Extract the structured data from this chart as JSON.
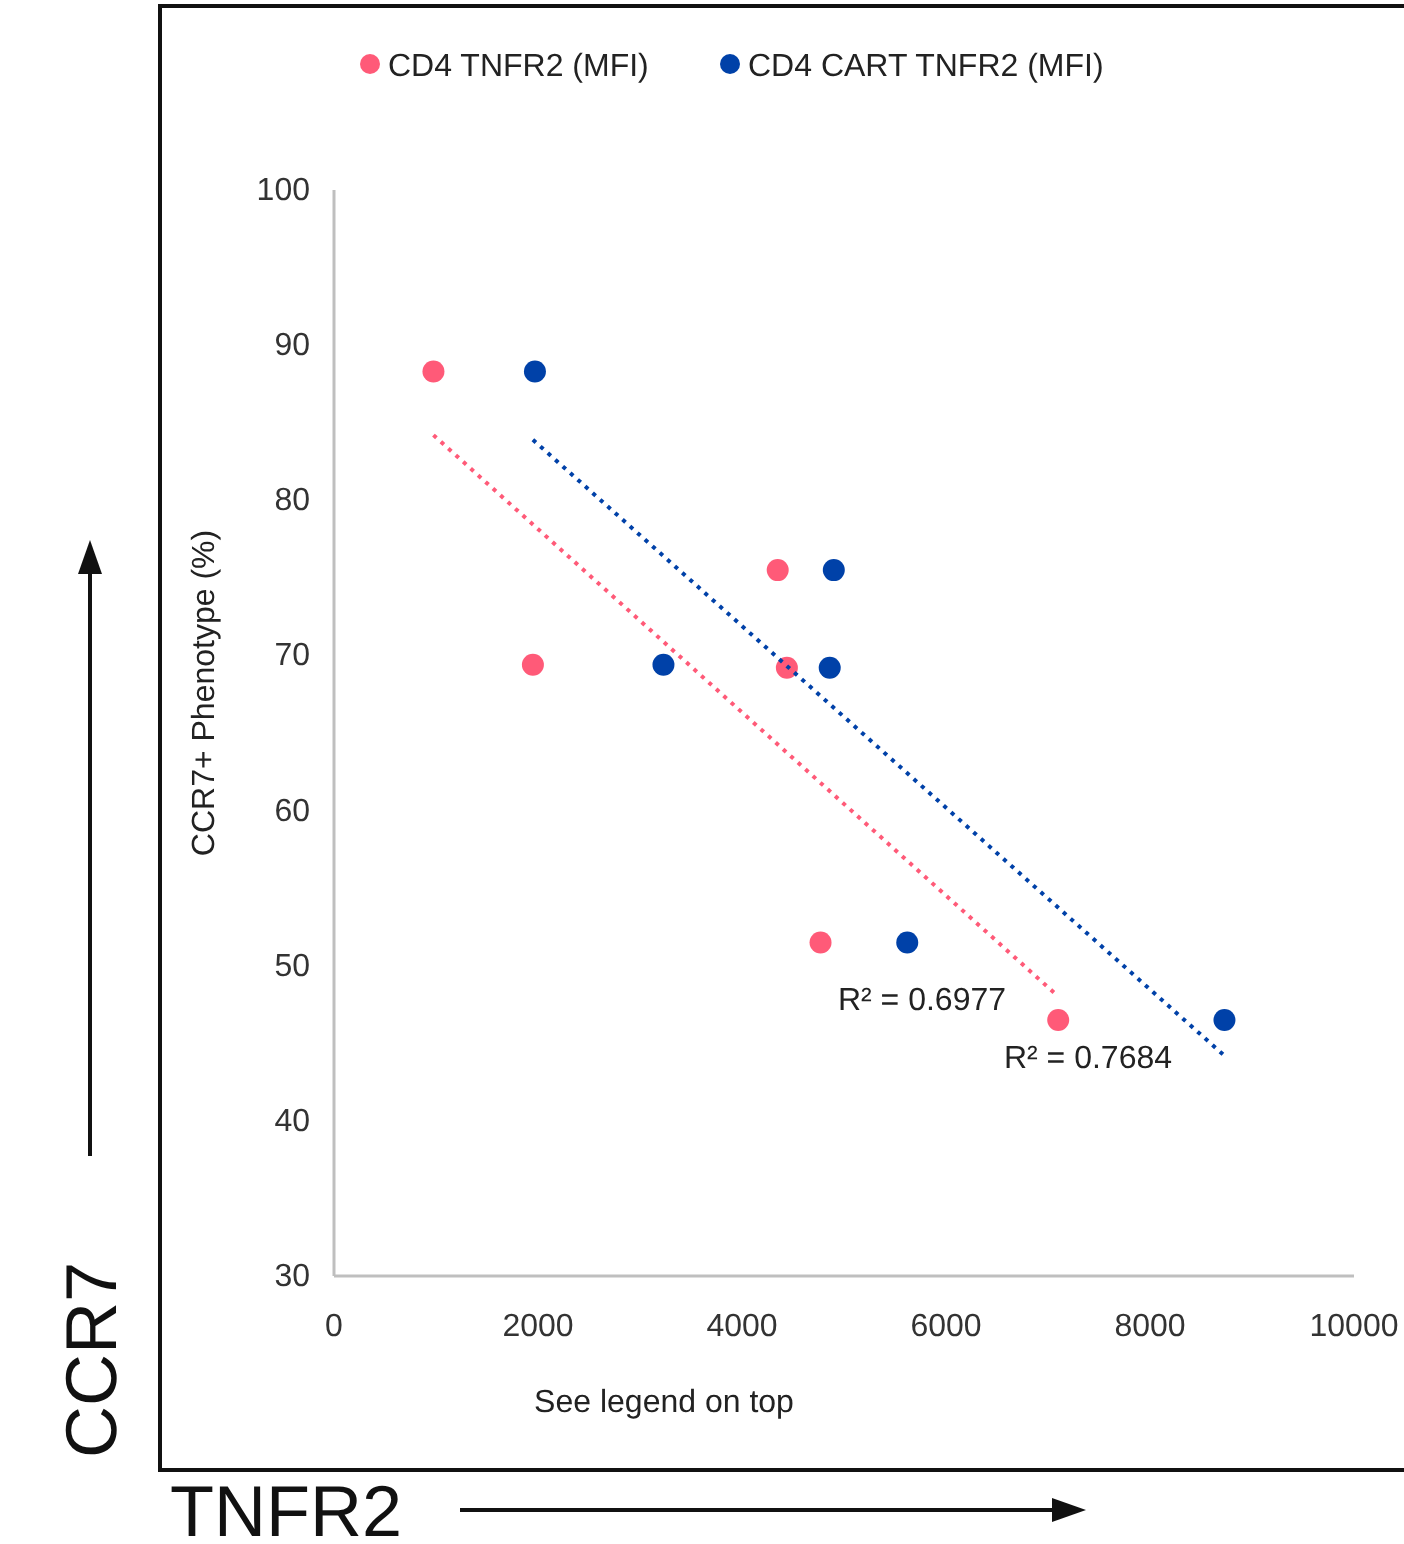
{
  "chart_data": {
    "type": "scatter",
    "xlabel": "See legend on top",
    "ylabel": "CCR7+ Phenotype (%)",
    "xlim": [
      0,
      10000
    ],
    "xticks": [
      0,
      2000,
      4000,
      6000,
      8000,
      10000
    ],
    "ylim": [
      30,
      100
    ],
    "yticks": [
      30,
      40,
      50,
      60,
      70,
      80,
      90,
      100
    ],
    "grid": false,
    "legend": "top",
    "marker": "circle",
    "series": [
      {
        "name": "CD4 TNFR2 (MFI)",
        "color": "#ff5a78",
        "x": [
          975,
          4350,
          1950,
          4440,
          4770,
          7100
        ],
        "values": [
          88.3,
          75.5,
          69.4,
          69.2,
          51.5,
          46.5
        ]
      },
      {
        "name": "CD4 CART TNFR2 (MFI)",
        "color": "#0041a8",
        "x": [
          1970,
          4900,
          3230,
          4860,
          5620,
          8730
        ],
        "values": [
          88.3,
          75.5,
          69.4,
          69.2,
          51.5,
          46.5
        ]
      },
      {
        "type": "line",
        "color": "#ff5a78",
        "marker": "none",
        "line_style": "dotted",
        "x": [
          975,
          7070
        ],
        "values": [
          84.2,
          48.2
        ]
      },
      {
        "type": "line",
        "color": "#0041a8",
        "marker": "none",
        "line_style": "dotted",
        "x": [
          1950,
          8730
        ],
        "values": [
          83.9,
          44.2
        ]
      }
    ],
    "annotations": [
      "R² = 0.6977",
      "R² = 0.7684",
      "CCR7",
      "TNFR2"
    ]
  }
}
